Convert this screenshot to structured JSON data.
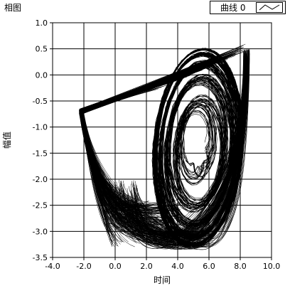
{
  "window": {
    "title": "相图"
  },
  "legend": {
    "label": "曲线 0",
    "icon": "line-swatch-icon"
  },
  "chart_data": {
    "type": "line",
    "title": "相图",
    "xlabel": "时间",
    "ylabel": "幅值",
    "xlim": [
      -4.0,
      10.0
    ],
    "ylim": [
      -3.5,
      1.0
    ],
    "xticks": [
      "-4.0",
      "-2.0",
      "0.0",
      "2.0",
      "4.0",
      "6.0",
      "8.0",
      "10.0"
    ],
    "yticks": [
      "1.0",
      "0.5",
      "0.0",
      "-0.5",
      "-1.0",
      "-1.5",
      "-2.0",
      "-2.5",
      "-3.0",
      "-3.5"
    ],
    "grid": true,
    "legend_position": "top-right",
    "series": [
      {
        "name": "曲线 0",
        "color": "#000000",
        "description_of_shape": "dense phase-portrait trajectory filling a region spanning x≈-2.3..8.7, y≈-3.35..0.55, with a hole near (5.3, -1.4)",
        "key_points": {
          "left_tip": [
            -2.3,
            -0.65
          ],
          "top_right": [
            8.6,
            0.4
          ],
          "bottom": [
            4.0,
            -3.35
          ],
          "center_hole": [
            5.3,
            -1.4
          ]
        }
      }
    ],
    "colors": {
      "line": "#000000",
      "grid": "#000000",
      "background": "#ffffff"
    }
  }
}
